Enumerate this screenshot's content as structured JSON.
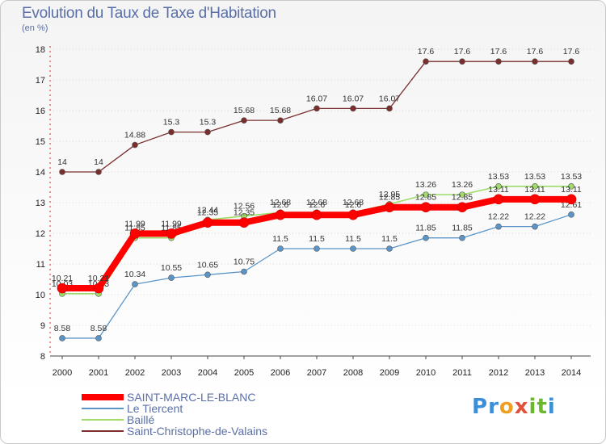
{
  "title": "Evolution du Taux de Taxe d'Habitation",
  "subtitle": "(en %)",
  "logo": {
    "text": "Proxiti",
    "letters": [
      "P",
      "r",
      "o",
      "x",
      "i",
      "t",
      "i"
    ],
    "colors": [
      "#3a8fd8",
      "#3a8fd8",
      "#f0a020",
      "#e0503a",
      "#6ab82c",
      "#6ab82c",
      "#3a8fd8"
    ]
  },
  "chart_data": {
    "type": "line",
    "title": "Evolution du Taux de Taxe d'Habitation",
    "ylabel": "(en %)",
    "xlabel": "",
    "x": [
      "2000",
      "2001",
      "2002",
      "2003",
      "2004",
      "2005",
      "2006",
      "2007",
      "2008",
      "2009",
      "2010",
      "2011",
      "2012",
      "2013",
      "2014"
    ],
    "ylim": [
      8,
      18
    ],
    "yticks": [
      "8",
      "9",
      "10",
      "11",
      "12",
      "13",
      "14",
      "15",
      "16",
      "17",
      "18"
    ],
    "legend_position": "bottom-left",
    "series": [
      {
        "name": "Saint-Christophe-de-Valains",
        "color": "#7a2e2e",
        "width": 1.3,
        "values": [
          14,
          14,
          14.88,
          15.3,
          15.3,
          15.68,
          15.68,
          16.07,
          16.07,
          16.07,
          17.6,
          17.6,
          17.6,
          17.6,
          17.6
        ],
        "labels": [
          "14",
          "14",
          "14.88",
          "15.3",
          "15.3",
          "15.68",
          "15.68",
          "16.07",
          "16.07",
          "16.07",
          "17.6",
          "17.6",
          "17.6",
          "17.6",
          "17.6"
        ]
      },
      {
        "name": "Le Tiercent",
        "color": "#5b95c8",
        "width": 1.3,
        "values": [
          8.58,
          8.58,
          10.34,
          10.55,
          10.65,
          10.75,
          11.5,
          11.5,
          11.5,
          11.5,
          11.85,
          11.85,
          12.22,
          12.22,
          12.61
        ],
        "labels": [
          "8.58",
          "8.58",
          "10.34",
          "10.55",
          "10.65",
          "10.75",
          "11.5",
          "11.5",
          "11.5",
          "11.5",
          "11.85",
          "11.85",
          "12.22",
          "12.22",
          "12.61"
        ]
      },
      {
        "name": "Baillé",
        "color": "#9edc6a",
        "width": 1.6,
        "values": [
          10.03,
          10.03,
          11.85,
          11.85,
          12.44,
          12.56,
          12.68,
          12.68,
          12.68,
          12.95,
          13.26,
          13.26,
          13.53,
          13.53,
          13.53
        ],
        "labels": [
          "10.03",
          "10.03",
          "11.85",
          "11.85",
          "12.44",
          "12.56",
          "12.68",
          "12.68",
          "12.68",
          "12.95",
          "13.26",
          "13.26",
          "13.53",
          "13.53",
          "13.53"
        ]
      },
      {
        "name": "SAINT-MARC-LE-BLANC",
        "color": "#ff0000",
        "width": 8,
        "values": [
          10.21,
          10.21,
          11.99,
          11.99,
          12.35,
          12.35,
          12.6,
          12.6,
          12.6,
          12.85,
          12.85,
          12.85,
          13.11,
          13.11,
          13.11
        ],
        "labels": [
          "10.21",
          "10.21",
          "11.99",
          "11.99",
          "12.35",
          "12.35",
          "12.6",
          "12.6",
          "12.6",
          "12.85",
          "12.85",
          "12.85",
          "13.11",
          "13.11",
          "13.11"
        ]
      }
    ],
    "legend": [
      {
        "name": "SAINT-MARC-LE-BLANC",
        "color": "#ff0000"
      },
      {
        "name": "Le Tiercent",
        "color": "#5b95c8"
      },
      {
        "name": "Baillé",
        "color": "#9edc6a"
      },
      {
        "name": "Saint-Christophe-de-Valains",
        "color": "#7a2e2e"
      }
    ]
  }
}
